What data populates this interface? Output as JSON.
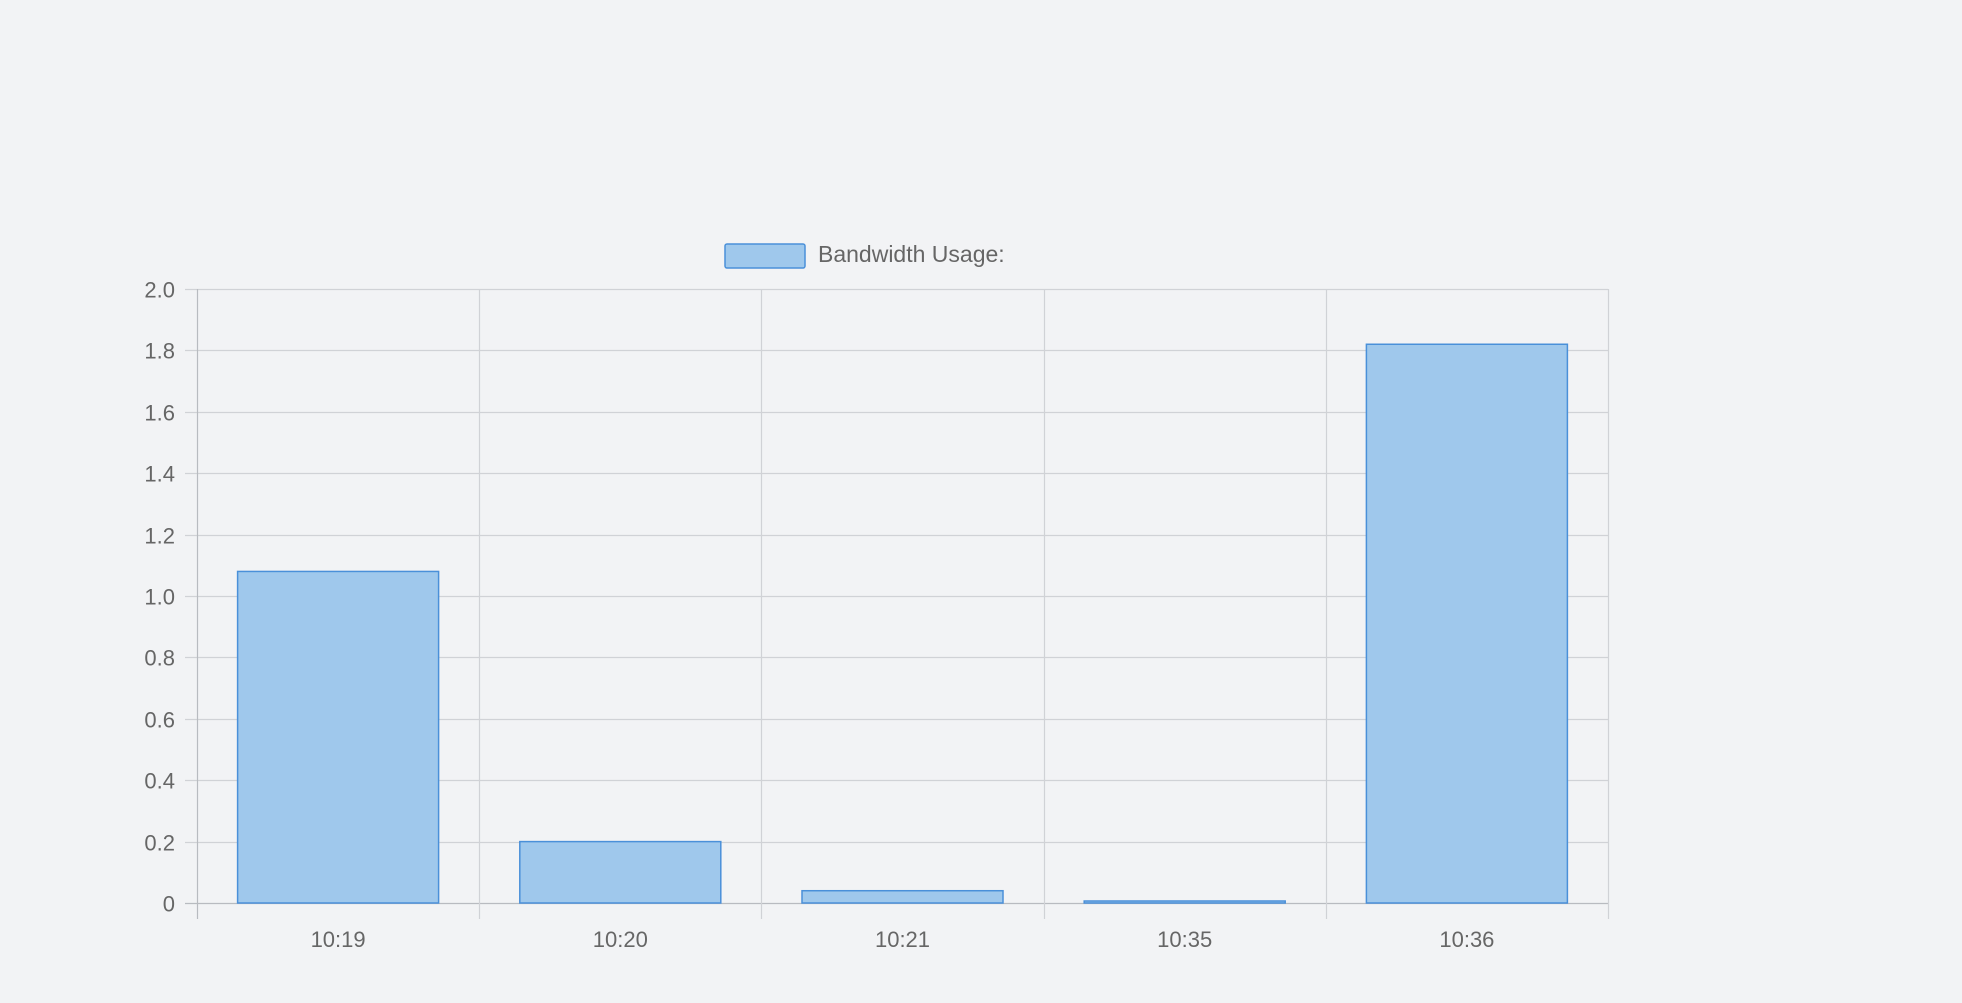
{
  "chart_data": {
    "type": "bar",
    "categories": [
      "10:19",
      "10:20",
      "10:21",
      "10:35",
      "10:36"
    ],
    "series": [
      {
        "name": "Bandwidth Usage:",
        "values": [
          1.08,
          0.2,
          0.04,
          0.005,
          1.82
        ]
      }
    ],
    "title": "",
    "xlabel": "",
    "ylabel": "",
    "ylim": [
      0,
      2.0
    ],
    "yticks": [
      "0",
      "0.2",
      "0.4",
      "0.6",
      "0.8",
      "1.0",
      "1.2",
      "1.4",
      "1.6",
      "1.8",
      "2.0"
    ],
    "grid": true,
    "legend_position": "top",
    "colors": {
      "bar_fill": "#9fc8ec",
      "bar_border": "#4a90d9",
      "grid": "#d0d2d6",
      "axis": "#b8bbc0",
      "text": "#666666",
      "background": "#f2f3f5"
    }
  }
}
